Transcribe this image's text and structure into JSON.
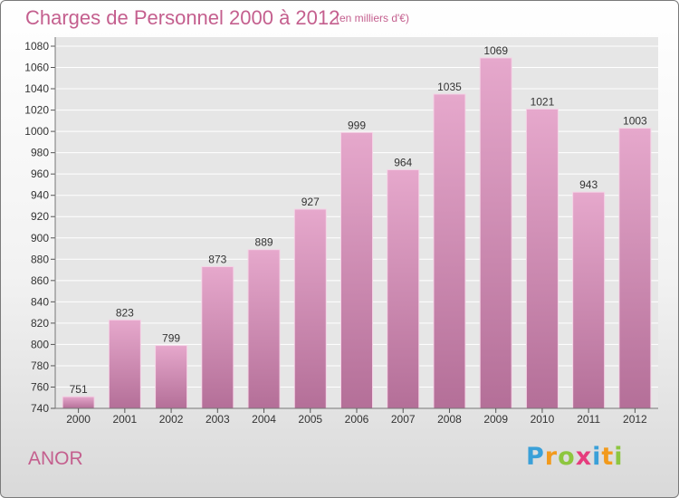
{
  "header": {
    "title": "Charges de Personnel 2000 à 2012",
    "unit": "(en milliers d'€)"
  },
  "footer": {
    "place": "ANOR",
    "logo": {
      "text": "Proxiti",
      "letters": [
        {
          "char": "P",
          "color": "#3aa0d8"
        },
        {
          "char": "r",
          "color": "#f29a1c"
        },
        {
          "char": "o",
          "color": "#8dc63f"
        },
        {
          "char": "x",
          "color": "#e63c7d"
        },
        {
          "char": "i",
          "color": "#3aa0d8"
        },
        {
          "char": "t",
          "color": "#f29a1c"
        },
        {
          "char": "i",
          "color": "#8dc63f"
        }
      ]
    }
  },
  "colors": {
    "accent": "#c45f8e",
    "bar_top": "#e6a8cc",
    "bar_bottom": "#b46f98",
    "grid": "#ffffff"
  },
  "chart_data": {
    "type": "bar",
    "title": "Charges de Personnel 2000 à 2012",
    "subtitle": "(en milliers d'€)",
    "xlabel": "",
    "ylabel": "",
    "categories": [
      "2000",
      "2001",
      "2002",
      "2003",
      "2004",
      "2005",
      "2006",
      "2007",
      "2008",
      "2009",
      "2010",
      "2011",
      "2012"
    ],
    "values": [
      751,
      823,
      799,
      873,
      889,
      927,
      999,
      964,
      1035,
      1069,
      1021,
      943,
      1003
    ],
    "ylim": [
      740,
      1080
    ],
    "yticks": [
      740,
      760,
      780,
      800,
      820,
      840,
      860,
      880,
      900,
      920,
      940,
      960,
      980,
      1000,
      1020,
      1040,
      1060,
      1080
    ],
    "grid": true,
    "data_labels": true
  }
}
